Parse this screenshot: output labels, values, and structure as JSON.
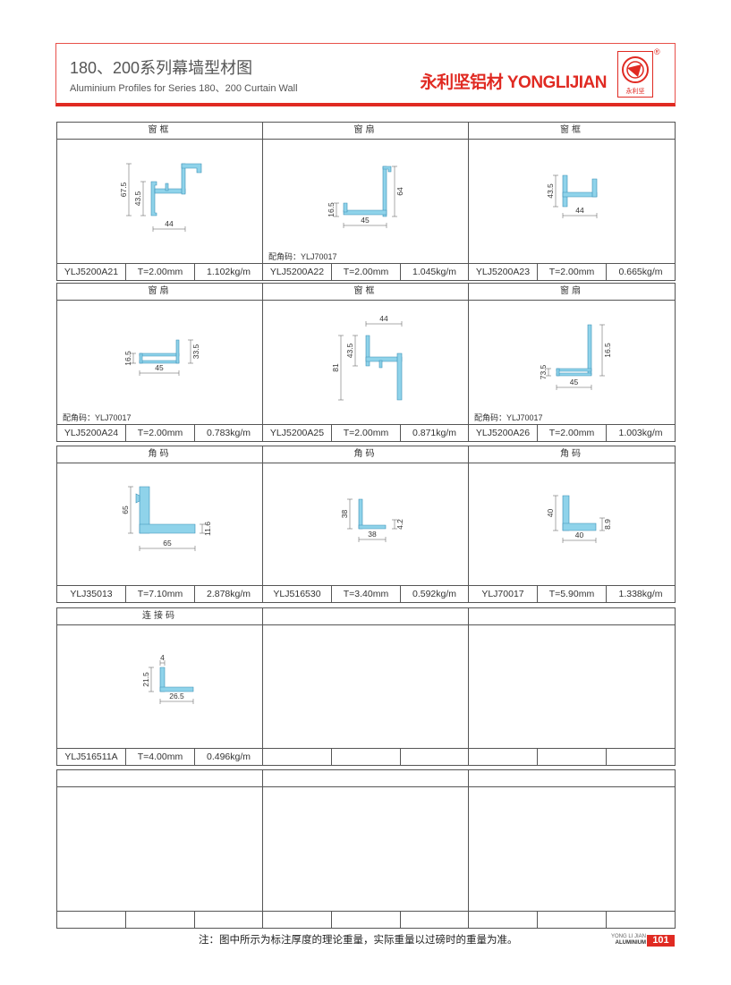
{
  "header": {
    "title": "180、200系列幕墙型材图",
    "subtitle": "Aluminium Profiles for Series 180、200 Curtain Wall",
    "brand": "永利坚铝材 YONGLIJIAN",
    "logo_text": "永利坚",
    "registered": "®"
  },
  "colors": {
    "accent": "#e02a22",
    "profile_fill": "#8fd3ea",
    "profile_stroke": "#3a8fb5"
  },
  "cells": [
    {
      "title": "窗框",
      "code": "YLJ5200A21",
      "thickness": "T=2.00mm",
      "weight": "1.102kg/m",
      "note": "",
      "dims": [
        "67.5",
        "43.5",
        "44"
      ]
    },
    {
      "title": "窗扇",
      "code": "YLJ5200A22",
      "thickness": "T=2.00mm",
      "weight": "1.045kg/m",
      "note": "配角码：YLJ70017",
      "dims": [
        "64",
        "16.5",
        "45"
      ]
    },
    {
      "title": "窗框",
      "code": "YLJ5200A23",
      "thickness": "T=2.00mm",
      "weight": "0.665kg/m",
      "note": "",
      "dims": [
        "43.5",
        "44"
      ]
    },
    {
      "title": "窗扇",
      "code": "YLJ5200A24",
      "thickness": "T=2.00mm",
      "weight": "0.783kg/m",
      "note": "配角码：YLJ70017",
      "dims": [
        "16.5",
        "33.5",
        "45"
      ]
    },
    {
      "title": "窗框",
      "code": "YLJ5200A25",
      "thickness": "T=2.00mm",
      "weight": "0.871kg/m",
      "note": "",
      "dims": [
        "81",
        "43.5",
        "44"
      ]
    },
    {
      "title": "窗扇",
      "code": "YLJ5200A26",
      "thickness": "T=2.00mm",
      "weight": "1.003kg/m",
      "note": "配角码：YLJ70017",
      "dims": [
        "16.5",
        "73.5",
        "45"
      ]
    },
    {
      "title": "角码",
      "code": "YLJ35013",
      "thickness": "T=7.10mm",
      "weight": "2.878kg/m",
      "note": "",
      "dims": [
        "65",
        "11.6",
        "65"
      ]
    },
    {
      "title": "角码",
      "code": "YLJ516530",
      "thickness": "T=3.40mm",
      "weight": "0.592kg/m",
      "note": "",
      "dims": [
        "38",
        "4.2",
        "38"
      ]
    },
    {
      "title": "角码",
      "code": "YLJ70017",
      "thickness": "T=5.90mm",
      "weight": "1.338kg/m",
      "note": "",
      "dims": [
        "40",
        "8.9",
        "40"
      ]
    },
    {
      "title": "连接码",
      "code": "YLJ516511A",
      "thickness": "T=4.00mm",
      "weight": "0.496kg/m",
      "note": "",
      "dims": [
        "21.5",
        "4",
        "26.5"
      ]
    },
    {
      "title": "",
      "code": "",
      "thickness": "",
      "weight": "",
      "note": "",
      "dims": []
    },
    {
      "title": "",
      "code": "",
      "thickness": "",
      "weight": "",
      "note": "",
      "dims": []
    },
    {
      "title": "",
      "code": "",
      "thickness": "",
      "weight": "",
      "note": "",
      "dims": []
    },
    {
      "title": "",
      "code": "",
      "thickness": "",
      "weight": "",
      "note": "",
      "dims": []
    },
    {
      "title": "",
      "code": "",
      "thickness": "",
      "weight": "",
      "note": "",
      "dims": []
    }
  ],
  "footer": {
    "note": "注：图中所示为标注厚度的理论重量，实际重量以过磅时的重量为准。",
    "brand_small": "YONG LI JIAN",
    "brand_small2": "ALUMINIUM",
    "page_number": "101"
  }
}
